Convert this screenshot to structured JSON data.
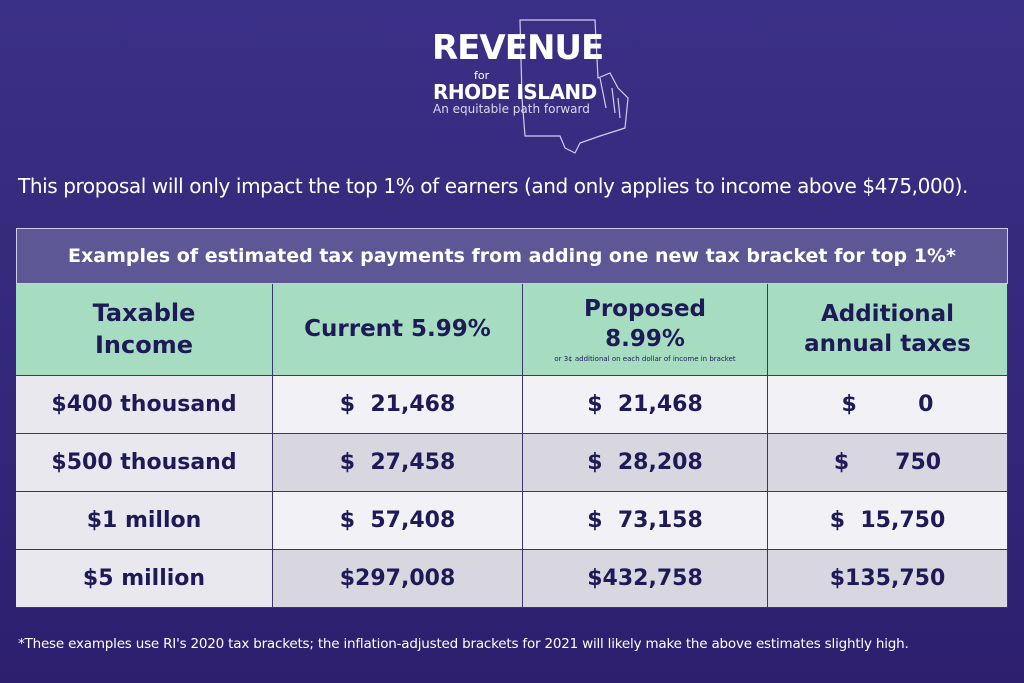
{
  "logo": {
    "title": "REVENUE",
    "for": "for",
    "state": "RHODE ISLAND",
    "tagline": "An equitable path forward"
  },
  "intro": "This proposal will only impact the top 1% of earners (and only applies to income above $475,000).",
  "table": {
    "title": "Examples of estimated tax payments from adding one new tax bracket for top 1%*",
    "headers": [
      "Taxable Income",
      "Current 5.99%",
      "Proposed 8.99%",
      "Additional annual taxes"
    ],
    "header_note": "or 3¢ additional on each dollar of income in bracket",
    "rows": [
      [
        "$400 thousand",
        "$  21,468",
        "$  21,468",
        "$        0"
      ],
      [
        "$500 thousand",
        "$  27,458",
        "$  28,208",
        "$      750"
      ],
      [
        "$1 millon",
        "$  57,408",
        "$  73,158",
        "$  15,750"
      ],
      [
        "$5 million",
        "$297,008",
        "$432,758",
        "$135,750"
      ]
    ]
  },
  "footnote": "*These examples use RI's 2020 tax brackets; the inflation-adjusted brackets for 2021 will likely make the above estimates slightly high."
}
